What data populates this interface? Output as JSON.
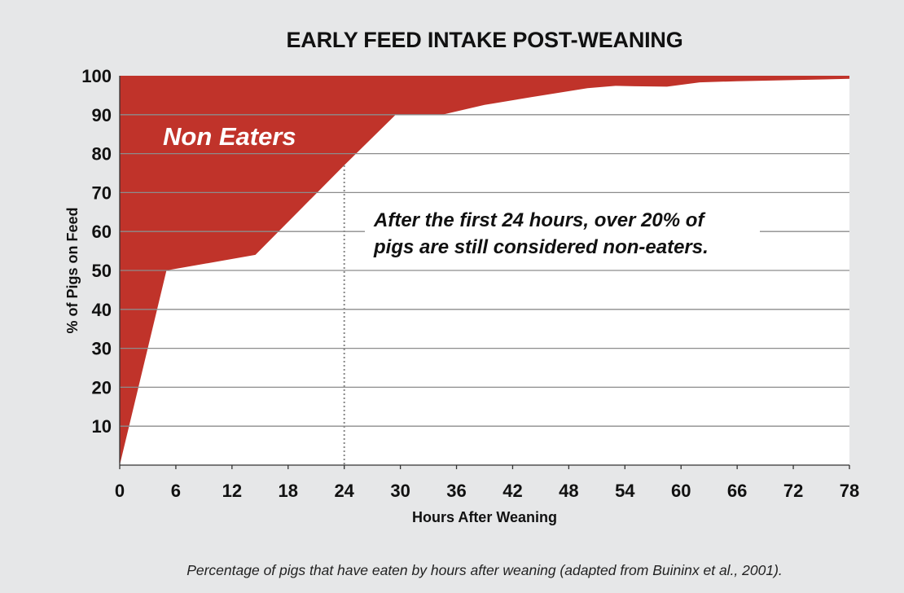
{
  "chart_data": {
    "type": "area",
    "title": "EARLY FEED INTAKE POST-WEANING",
    "xlabel": "Hours After Weaning",
    "ylabel": "% of Pigs on Feed",
    "xlim": [
      0,
      78
    ],
    "ylim": [
      0,
      100
    ],
    "x_ticks": [
      0,
      6,
      12,
      18,
      24,
      30,
      36,
      42,
      48,
      54,
      60,
      66,
      72,
      78
    ],
    "y_ticks": [
      10,
      20,
      30,
      40,
      50,
      60,
      70,
      80,
      90,
      100
    ],
    "y_tick_labels": [
      "10",
      "20",
      "30",
      "40",
      "50",
      "60",
      "70",
      "80",
      "90",
      "100"
    ],
    "grid": true,
    "series": [
      {
        "x": [
          0,
          5,
          14.5,
          24,
          29.5,
          34.5,
          39,
          44,
          50,
          53,
          55,
          58.5,
          62,
          66,
          78
        ],
        "y": [
          0,
          50,
          54,
          77,
          90,
          90,
          92.5,
          94.5,
          96.8,
          97.4,
          97.3,
          97.2,
          98.3,
          98.6,
          99.2
        ]
      }
    ],
    "colors": {
      "non_eaters_fill": "#c0332a",
      "eaters_fill": "#ffffff",
      "grid": "#8c8c8c"
    },
    "annotations": {
      "region_label": "Non Eaters",
      "callout_line1": "After the first 24 hours, over 20% of",
      "callout_line2": "pigs are still considered non-eaters.",
      "marker_x": 24
    },
    "caption": "Percentage of pigs that have eaten by hours after weaning (adapted from Buininx et al., 2001)."
  }
}
